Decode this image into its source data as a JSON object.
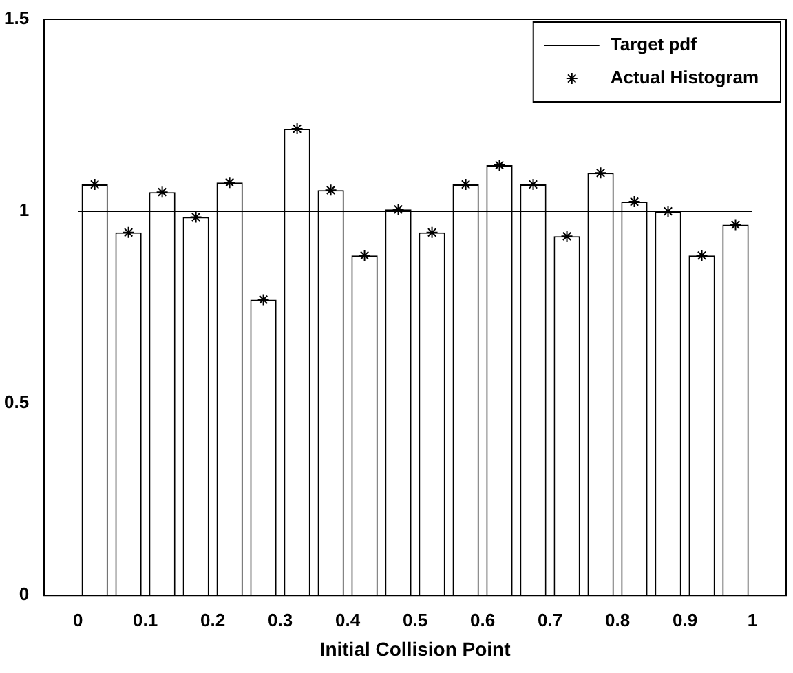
{
  "chart_data": {
    "type": "histogram",
    "xlabel": "Initial Collision Point",
    "xlim": [
      0,
      1
    ],
    "xticks": [
      0,
      0.1,
      0.2,
      0.3,
      0.4,
      0.5,
      0.6,
      0.7,
      0.8,
      0.9,
      1
    ],
    "ylim": [
      0,
      1.5
    ],
    "yticks": [
      0,
      0.5,
      1,
      1.5
    ],
    "grid": false,
    "legend": "top right",
    "bins": [
      0,
      0.05,
      0.1,
      0.15,
      0.2,
      0.25,
      0.3,
      0.35,
      0.4,
      0.45,
      0.5,
      0.55,
      0.6,
      0.65,
      0.7,
      0.75,
      0.8,
      0.85,
      0.9,
      0.95,
      1
    ],
    "series": [
      {
        "name": "Target pdf",
        "type": "line",
        "color": "#000000",
        "x": [
          0,
          1
        ],
        "values": [
          1,
          1
        ],
        "marker": "none"
      },
      {
        "color": "#000000",
        "values": [
          1.07,
          0.945,
          1.05,
          0.985,
          1.075,
          0.77,
          1.215,
          1.055,
          0.885,
          1.005,
          0.945,
          1.07,
          1.12,
          1.07,
          0.935,
          1.1,
          1.025,
          1.0,
          0.885,
          0.965
        ]
      },
      {
        "name": "Actual Histogram",
        "type": "scatter",
        "color": "#000000",
        "marker": "cross",
        "x": [
          0.025,
          0.075,
          0.125,
          0.175,
          0.225,
          0.275,
          0.325,
          0.375,
          0.425,
          0.475,
          0.525,
          0.575,
          0.625,
          0.675,
          0.725,
          0.775,
          0.825,
          0.875,
          0.925,
          0.975
        ],
        "values": [
          1.07,
          0.945,
          1.05,
          0.985,
          1.075,
          0.77,
          1.215,
          1.055,
          0.885,
          1.005,
          0.945,
          1.07,
          1.12,
          1.07,
          0.935,
          1.1,
          1.025,
          1.0,
          0.885,
          0.965
        ]
      }
    ]
  }
}
